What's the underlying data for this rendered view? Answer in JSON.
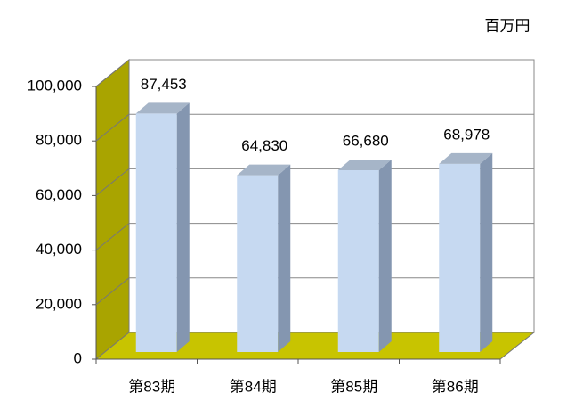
{
  "chart_data": {
    "type": "bar3d",
    "unit": "百万円",
    "categories": [
      "第83期",
      "第84期",
      "第85期",
      "第86期"
    ],
    "values": [
      87453,
      64830,
      66680,
      68978
    ],
    "value_labels": [
      "87,453",
      "64,830",
      "66,680",
      "68,978"
    ],
    "color": "#c6d9f1",
    "ylim": [
      0,
      100000
    ],
    "yticks": [
      0,
      {
        "value": 20000,
        "label": "20,000"
      },
      {
        "value": 40000,
        "label": "40,000"
      },
      {
        "value": 60000,
        "label": "60,000"
      },
      {
        "value": 80000,
        "label": "80,000"
      },
      {
        "value": 100000,
        "label": "100,000"
      }
    ],
    "grid": true
  }
}
